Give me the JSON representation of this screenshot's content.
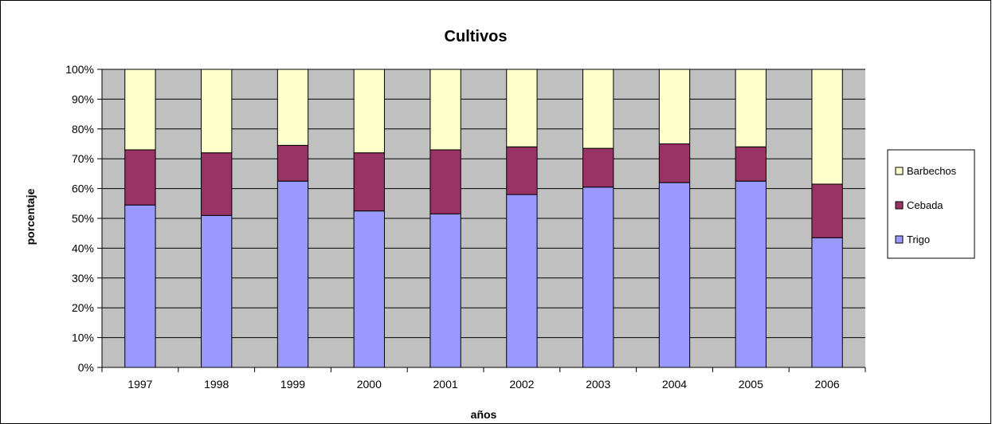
{
  "chart_data": {
    "type": "bar",
    "stacked": true,
    "percent_stacked": true,
    "title": "Cultivos",
    "xlabel": "años",
    "ylabel": "porcentaje",
    "ylim": [
      0,
      100
    ],
    "yticks": [
      "0%",
      "10%",
      "20%",
      "30%",
      "40%",
      "50%",
      "60%",
      "70%",
      "80%",
      "90%",
      "100%"
    ],
    "categories": [
      "1997",
      "1998",
      "1999",
      "2000",
      "2001",
      "2002",
      "2003",
      "2004",
      "2005",
      "2006"
    ],
    "series": [
      {
        "name": "Trigo",
        "color": "#9999ff",
        "values": [
          54.5,
          51,
          62.5,
          52.5,
          51.5,
          58,
          60.5,
          62,
          62.5,
          43.5
        ]
      },
      {
        "name": "Cebada",
        "color": "#993366",
        "values": [
          18.5,
          21,
          12,
          19.5,
          21.5,
          16,
          13,
          13,
          11.5,
          18
        ]
      },
      {
        "name": "Barbechos",
        "color": "#ffffcc",
        "values": [
          27,
          28,
          25.5,
          28,
          27,
          26,
          26.5,
          25,
          26,
          38.5
        ]
      }
    ],
    "legend_position": "right",
    "legend_order": [
      "Barbechos",
      "Cebada",
      "Trigo"
    ],
    "grid": true,
    "plot_background": "#c0c0c0"
  }
}
